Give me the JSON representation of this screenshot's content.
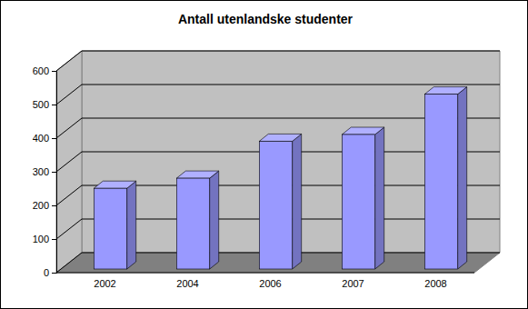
{
  "chart_data": {
    "type": "bar",
    "title": "Antall utenlandske studenter",
    "categories": [
      "2002",
      "2004",
      "2006",
      "2007",
      "2008"
    ],
    "values": [
      240,
      270,
      380,
      400,
      520
    ],
    "color": "#9999ff",
    "ylim": [
      0,
      600
    ],
    "yticks": [
      0,
      100,
      200,
      300,
      400,
      500,
      600
    ],
    "grid": true
  }
}
